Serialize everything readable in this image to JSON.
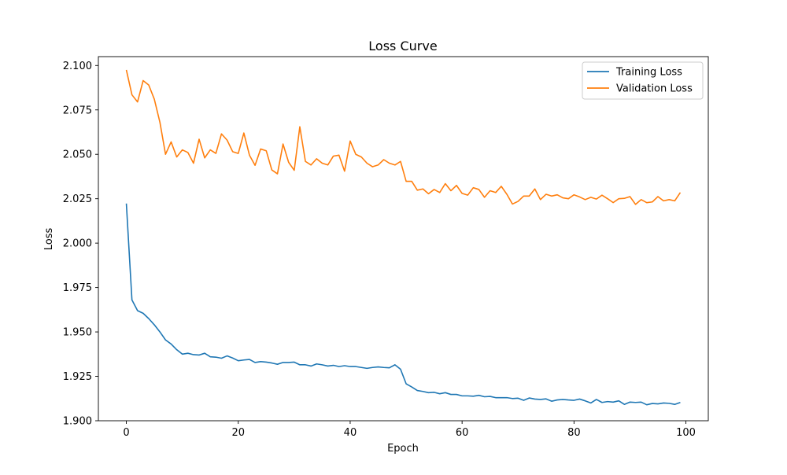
{
  "chart_data": {
    "type": "line",
    "title": "Loss Curve",
    "xlabel": "Epoch",
    "ylabel": "Loss",
    "xlim": [
      -5,
      104
    ],
    "ylim": [
      1.9,
      2.105
    ],
    "xticks": [
      0,
      20,
      40,
      60,
      80,
      100
    ],
    "yticks": [
      1.9,
      1.925,
      1.95,
      1.975,
      2.0,
      2.025,
      2.05,
      2.075,
      2.1
    ],
    "ytick_labels": [
      "1.900",
      "1.925",
      "1.950",
      "1.975",
      "2.000",
      "2.025",
      "2.050",
      "2.075",
      "2.100"
    ],
    "grid": false,
    "legend_position": "top-right",
    "series": [
      {
        "name": "Training Loss",
        "color": "#1f77b4",
        "values": [
          2.0223,
          1.968,
          1.962,
          1.9605,
          1.9575,
          1.954,
          1.95,
          1.9455,
          1.9432,
          1.94,
          1.9375,
          1.938,
          1.9372,
          1.937,
          1.938,
          1.936,
          1.9358,
          1.9352,
          1.9365,
          1.9353,
          1.9338,
          1.9342,
          1.9345,
          1.9328,
          1.9333,
          1.933,
          1.9325,
          1.9318,
          1.9328,
          1.9328,
          1.933,
          1.9315,
          1.9315,
          1.9308,
          1.932,
          1.9315,
          1.9308,
          1.9312,
          1.9305,
          1.931,
          1.9305,
          1.9305,
          1.93,
          1.9295,
          1.93,
          1.9303,
          1.93,
          1.9298,
          1.9315,
          1.929,
          1.9208,
          1.919,
          1.917,
          1.9165,
          1.9158,
          1.916,
          1.9152,
          1.9158,
          1.9148,
          1.9148,
          1.914,
          1.914,
          1.9138,
          1.9143,
          1.9135,
          1.9137,
          1.913,
          1.913,
          1.913,
          1.9125,
          1.9127,
          1.9115,
          1.9128,
          1.9122,
          1.912,
          1.9123,
          1.911,
          1.9117,
          1.912,
          1.9117,
          1.9115,
          1.9122,
          1.9112,
          1.91,
          1.912,
          1.9103,
          1.9108,
          1.9105,
          1.9112,
          1.9092,
          1.9105,
          1.9103,
          1.9105,
          1.909,
          1.9097,
          1.9095,
          1.91,
          1.9098,
          1.9092,
          1.9103
        ]
      },
      {
        "name": "Validation Loss",
        "color": "#ff7f0e",
        "values": [
          2.0975,
          2.0835,
          2.0795,
          2.0915,
          2.089,
          2.081,
          2.068,
          2.05,
          2.057,
          2.0485,
          2.0525,
          2.051,
          2.045,
          2.0585,
          2.048,
          2.0525,
          2.0505,
          2.0615,
          2.058,
          2.0515,
          2.0505,
          2.062,
          2.0495,
          2.0438,
          2.053,
          2.052,
          2.0412,
          2.039,
          2.0558,
          2.0455,
          2.041,
          2.0655,
          2.046,
          2.044,
          2.0475,
          2.045,
          2.044,
          2.049,
          2.0495,
          2.0405,
          2.0575,
          2.05,
          2.0485,
          2.045,
          2.043,
          2.044,
          2.047,
          2.045,
          2.044,
          2.046,
          2.0348,
          2.0348,
          2.0298,
          2.0305,
          2.0278,
          2.0302,
          2.0285,
          2.0335,
          2.0295,
          2.0325,
          2.028,
          2.027,
          2.0312,
          2.0302,
          2.0258,
          2.0295,
          2.0285,
          2.032,
          2.0275,
          2.022,
          2.0235,
          2.0265,
          2.0265,
          2.0305,
          2.0245,
          2.0275,
          2.0265,
          2.0272,
          2.0255,
          2.025,
          2.0272,
          2.026,
          2.0245,
          2.0258,
          2.0248,
          2.027,
          2.025,
          2.0228,
          2.025,
          2.0252,
          2.0262,
          2.0218,
          2.0245,
          2.0228,
          2.0232,
          2.0262,
          2.0238,
          2.0245,
          2.0238,
          2.0285
        ]
      }
    ]
  }
}
